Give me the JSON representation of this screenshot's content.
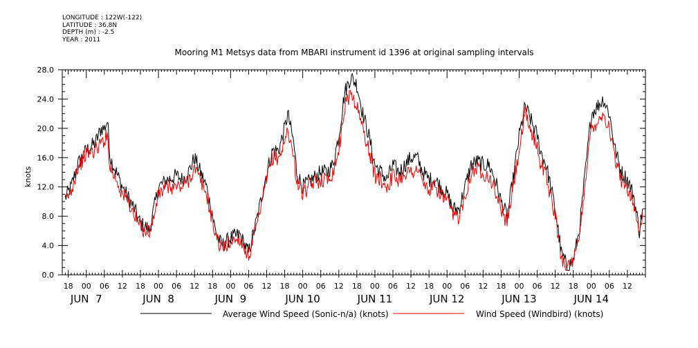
{
  "header": {
    "longitude": "LONGITUDE : 122W(-122)",
    "latitude": "LATITUDE : 36.8N",
    "depth": "DEPTH (m) : -2.5",
    "year": "YEAR : 2011"
  },
  "chart_data": {
    "type": "line",
    "title": "Mooring M1 Metsys data from MBARI instrument id 1396 at original sampling intervals",
    "xlabel": "",
    "ylabel": "knots",
    "ylim": [
      0,
      28
    ],
    "yticks": [
      "0.0",
      "4.0",
      "8.0",
      "12.0",
      "16.0",
      "20.0",
      "24.0",
      "28.0"
    ],
    "x_unit": "hours since JUN 7 00:00",
    "xlim": [
      -8,
      186
    ],
    "hour_ticks": [
      "18",
      "00",
      "06",
      "12",
      "18",
      "00",
      "06",
      "12",
      "18",
      "00",
      "06",
      "12",
      "18",
      "00",
      "06",
      "12",
      "18",
      "00",
      "06",
      "12",
      "18",
      "00",
      "06",
      "12",
      "18",
      "00",
      "06",
      "12",
      "18",
      "00",
      "06",
      "12"
    ],
    "day_labels": [
      "JUN  7",
      "JUN  8",
      "JUN  9",
      "JUN 10",
      "JUN 11",
      "JUN 12",
      "JUN 13",
      "JUN 14"
    ],
    "grid": false,
    "legend": "bottom",
    "series": [
      {
        "name": "Average Wind Speed (Sonic-n/a) (knots)",
        "color": "#000000",
        "x": [
          -7,
          -5,
          -3,
          0,
          3,
          5,
          6,
          7,
          8,
          10,
          12,
          14,
          16,
          18,
          20,
          21,
          22,
          24,
          27,
          30,
          32,
          34,
          36,
          40,
          43,
          45,
          48,
          51,
          54,
          57,
          60,
          62,
          64,
          66,
          67,
          69,
          70,
          72,
          75,
          78,
          80,
          82,
          84,
          86,
          88,
          90,
          92,
          94,
          96,
          98,
          100,
          102,
          104,
          106,
          108,
          110,
          112,
          114,
          116,
          118,
          120,
          122,
          124,
          126,
          128,
          130,
          132,
          134,
          136,
          138,
          140,
          142,
          144,
          146,
          148,
          150,
          151,
          153,
          154,
          156,
          158,
          160,
          162,
          164,
          166,
          168,
          170,
          172,
          174,
          176,
          178,
          180,
          182,
          184,
          185
        ],
        "y": [
          10.5,
          12,
          15,
          17,
          18,
          20,
          20,
          21,
          16,
          14,
          12,
          10.5,
          9,
          7,
          6.5,
          6,
          8,
          12,
          13,
          13.5,
          13,
          14,
          16,
          12,
          6,
          4,
          5,
          5.5,
          3,
          8,
          14,
          17,
          17,
          20,
          22,
          18,
          14,
          12,
          13,
          14,
          14,
          15,
          19,
          25,
          27,
          26,
          22,
          19,
          15,
          14,
          13,
          15,
          14,
          15,
          16,
          16,
          14,
          13,
          13,
          12,
          11,
          9,
          9,
          12,
          15,
          15.5,
          15,
          15,
          13,
          10,
          8,
          13,
          19,
          23,
          21,
          19,
          17,
          15,
          13,
          9,
          3,
          1,
          2,
          6,
          14,
          22,
          23,
          24,
          22,
          17,
          14,
          13,
          11,
          6,
          9
        ]
      },
      {
        "name": "Wind Speed (Windbird) (knots)",
        "color": "#ee0000",
        "x": [
          -7,
          -5,
          -3,
          0,
          3,
          5,
          6,
          7,
          8,
          10,
          12,
          14,
          16,
          18,
          20,
          21,
          22,
          24,
          27,
          30,
          32,
          34,
          36,
          40,
          43,
          45,
          48,
          51,
          54,
          57,
          60,
          62,
          64,
          66,
          67,
          69,
          70,
          72,
          75,
          78,
          80,
          82,
          84,
          86,
          88,
          90,
          92,
          94,
          96,
          98,
          100,
          102,
          104,
          106,
          108,
          110,
          112,
          114,
          116,
          118,
          120,
          122,
          124,
          126,
          128,
          130,
          132,
          134,
          136,
          138,
          140,
          142,
          144,
          146,
          148,
          150,
          151,
          153,
          154,
          156,
          158,
          160,
          162,
          164,
          166,
          168,
          170,
          172,
          174,
          176,
          178,
          180,
          182,
          184,
          185
        ],
        "y": [
          10,
          11.5,
          14.5,
          16.5,
          17,
          18,
          18.5,
          19,
          14.5,
          13,
          11,
          10,
          8,
          6.5,
          6,
          6,
          7,
          11,
          12,
          12,
          12,
          13,
          14.5,
          11,
          5.5,
          3.5,
          4.5,
          5,
          2.5,
          7,
          13,
          16,
          16,
          18,
          20,
          16,
          13,
          11,
          12.5,
          13,
          13,
          14,
          17,
          23,
          25,
          23,
          20,
          17,
          13.5,
          13,
          12,
          13.5,
          13,
          14,
          14,
          14.5,
          12.5,
          11.5,
          12,
          11,
          10,
          8,
          8,
          11,
          14,
          14.5,
          14,
          13.5,
          11.5,
          9,
          7,
          12,
          17,
          22,
          19.5,
          17.5,
          15.5,
          13.5,
          11.5,
          8,
          2.5,
          1,
          1.5,
          5,
          13,
          20,
          21,
          22,
          20,
          15.5,
          13,
          12,
          10,
          5.5,
          8.5
        ]
      }
    ]
  }
}
